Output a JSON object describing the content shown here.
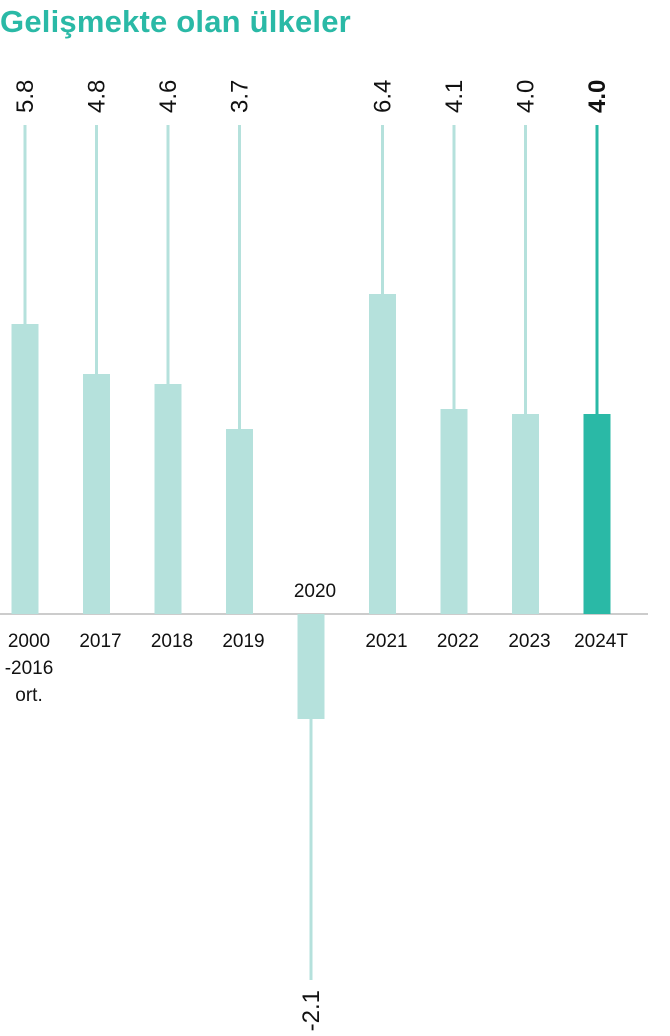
{
  "chart_data": {
    "type": "bar",
    "title": "Gelişmekte olan ülkeler",
    "categories": [
      "2000\n-2016\nort.",
      "2017",
      "2018",
      "2019",
      "2020",
      "2021",
      "2022",
      "2023",
      "2024T"
    ],
    "values": [
      5.8,
      4.8,
      4.6,
      3.7,
      -2.1,
      6.4,
      4.1,
      4.0,
      4.0
    ],
    "value_labels": [
      "5.8",
      "4.8",
      "4.6",
      "3.7",
      "-2.1",
      "6.4",
      "4.1",
      "4.0",
      "4.0"
    ],
    "highlight_index": 8,
    "ylim": [
      -7.3,
      11.5
    ],
    "grid": false,
    "colors": {
      "bar": "#b5e1dc",
      "highlight": "#2ab9a6",
      "highlight_label": "#2ab9a6",
      "baseline": "#cccccc",
      "title": "#2ab9a6"
    }
  }
}
